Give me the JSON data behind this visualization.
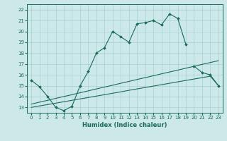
{
  "xlabel": "Humidex (Indice chaleur)",
  "x_values": [
    0,
    1,
    2,
    3,
    4,
    5,
    6,
    7,
    8,
    9,
    10,
    11,
    12,
    13,
    14,
    15,
    16,
    17,
    18,
    19,
    20,
    21,
    22,
    23
  ],
  "line1": [
    15.5,
    14.9,
    14.0,
    13.0,
    12.7,
    13.1,
    15.0,
    16.3,
    18.0,
    18.5,
    20.0,
    19.5,
    19.0,
    20.7,
    20.8,
    21.0,
    20.6,
    21.6,
    21.2,
    18.8,
    null,
    null,
    null,
    null
  ],
  "line2": [
    null,
    null,
    null,
    null,
    null,
    null,
    null,
    null,
    null,
    null,
    null,
    null,
    null,
    null,
    null,
    null,
    null,
    null,
    null,
    null,
    16.8,
    16.2,
    16.0,
    15.0
  ],
  "line3_straight": [
    13.3,
    13.48,
    13.65,
    13.83,
    14.0,
    14.17,
    14.35,
    14.52,
    14.7,
    14.87,
    15.04,
    15.22,
    15.39,
    15.57,
    15.74,
    15.91,
    16.09,
    16.26,
    16.43,
    16.61,
    16.78,
    16.96,
    17.13,
    17.3
  ],
  "line4_straight": [
    13.0,
    13.13,
    13.26,
    13.39,
    13.52,
    13.65,
    13.78,
    13.91,
    14.04,
    14.17,
    14.3,
    14.43,
    14.57,
    14.7,
    14.83,
    14.96,
    15.09,
    15.22,
    15.35,
    15.48,
    15.61,
    15.74,
    15.87,
    15.0
  ],
  "line_color": "#1a6b5a",
  "background_color": "#cce8e8",
  "grid_color": "#a8d0d0",
  "ylim": [
    12.5,
    22.5
  ],
  "xlim": [
    -0.5,
    23.5
  ],
  "yticks": [
    13,
    14,
    15,
    16,
    17,
    18,
    19,
    20,
    21,
    22
  ],
  "xticks": [
    0,
    1,
    2,
    3,
    4,
    5,
    6,
    7,
    8,
    9,
    10,
    11,
    12,
    13,
    14,
    15,
    16,
    17,
    18,
    19,
    20,
    21,
    22,
    23
  ],
  "tick_fontsize": 5.0,
  "xlabel_fontsize": 6.0
}
